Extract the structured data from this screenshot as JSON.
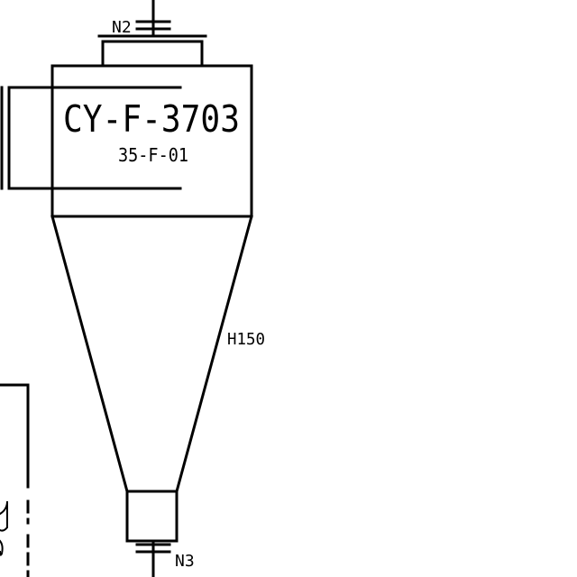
{
  "equipment": {
    "tag": "CY-F-3703",
    "subtag": "35-F-01"
  },
  "nozzles": {
    "top": "N2",
    "bottom": "N3"
  },
  "annotations": {
    "cone_note": "H150"
  },
  "colors": {
    "line": "#000000",
    "background": "#ffffff"
  }
}
